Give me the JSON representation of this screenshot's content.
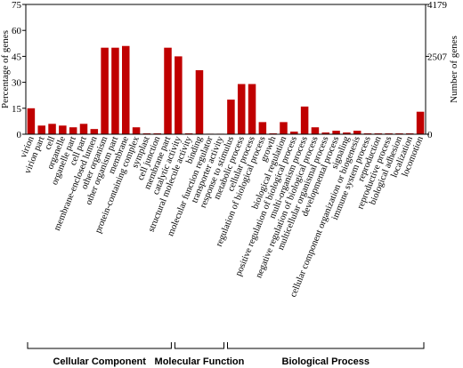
{
  "chart_data": {
    "type": "bar",
    "left_axis": {
      "title": "Percentage of genes",
      "ticks": [
        "75",
        "60",
        "45",
        "30",
        "15",
        "0"
      ],
      "tick_values": [
        75,
        60,
        45,
        30,
        15,
        0
      ],
      "range": [
        0,
        75
      ]
    },
    "right_axis": {
      "title": "Number of genes",
      "ticks": [
        "4179",
        "2507",
        "0"
      ],
      "tick_values": [
        75,
        45,
        0
      ]
    },
    "bar_color": "#c00000",
    "categories": [
      "virion",
      "virion part",
      "cell",
      "organelle",
      "organelle part",
      "cell part",
      "membrane-enclosed lumen",
      "other organism",
      "other organism part",
      "membrane",
      "protein-containing complex",
      "symplast",
      "cell junction",
      "membrane part",
      "catalytic activity",
      "structural molecule activity",
      "binding",
      "molecular function regulator",
      "transporter activity",
      "response to stimulus",
      "metabolic process",
      "cellular process",
      "regulation of biological process",
      "growth",
      "biological regulation",
      "positive regulation of biological process",
      "multi-organism process",
      "negative regulation of biological process",
      "multicellular organismal process",
      "developmental process",
      "signaling",
      "cellular component organization or biogenesis",
      "immune system process",
      "reproduction",
      "reproductive process",
      "biological adhesion",
      "localization",
      "locomotion"
    ],
    "values": [
      15,
      5,
      6,
      5,
      4,
      6,
      3,
      50,
      50,
      51,
      4,
      0.5,
      0.5,
      50,
      45,
      0.5,
      37,
      0.3,
      0.3,
      20,
      29,
      29,
      7,
      0.5,
      7,
      1.5,
      16,
      4,
      1,
      2,
      1,
      2,
      0.5,
      0.5,
      0.5,
      0.5,
      0.5,
      13
    ],
    "groups": [
      {
        "name": "Cellular Component",
        "start": 0,
        "end": 13
      },
      {
        "name": "Molecular Function",
        "start": 14,
        "end": 18
      },
      {
        "name": "Biological Process",
        "start": 19,
        "end": 37
      }
    ]
  }
}
